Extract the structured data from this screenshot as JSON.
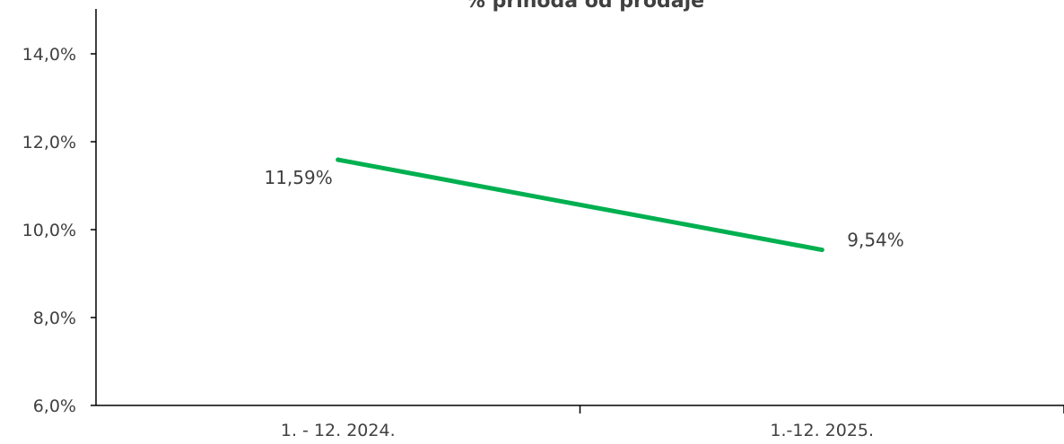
{
  "chart_data": {
    "type": "line",
    "title": "% prihoda od prodaje",
    "categories": [
      "1. - 12. 2024.",
      "1.-12. 2025."
    ],
    "series": [
      {
        "values": [
          11.59,
          9.54
        ],
        "labels": [
          "11,59%",
          "9,54%"
        ],
        "color": "#00b050"
      }
    ],
    "ylim": [
      6,
      14
    ],
    "yticks": [
      6,
      8,
      10,
      12,
      14
    ],
    "ytick_labels": [
      "6,0%",
      "8,0%",
      "10,0%",
      "12,0%",
      "14,0%"
    ],
    "grid": false,
    "xlabel": "",
    "ylabel": ""
  },
  "colors": {
    "axis": "#000000",
    "text": "#404040",
    "line": "#00b050"
  }
}
